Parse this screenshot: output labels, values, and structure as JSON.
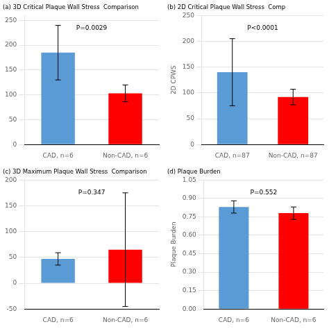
{
  "chart_data": [
    {
      "type": "bar",
      "title": "(a) 3D Critical Plaque Wall Stress  Comparison",
      "annotations": [
        "P=0.0029"
      ],
      "categories": [
        "CAD, n=6",
        "Non-CAD, n=6"
      ],
      "values": [
        185,
        103
      ],
      "errors": [
        55,
        17
      ],
      "colors": [
        "#5B9BD5",
        "#FF0000"
      ],
      "ylim": [
        0,
        260
      ],
      "yticks": [
        0,
        50,
        100,
        150,
        200,
        250
      ],
      "grid": true
    },
    {
      "type": "bar",
      "title": "(b) 2D Critical Plaque Wall Stress  Comp",
      "ylabel": "2D CPWS",
      "annotations": [
        "P<0.0001"
      ],
      "categories": [
        "CAD, n=87",
        "Non-CAD, n=87"
      ],
      "values": [
        140,
        92
      ],
      "errors": [
        65,
        15
      ],
      "colors": [
        "#5B9BD5",
        "#FF0000"
      ],
      "ylim": [
        0,
        250
      ],
      "yticks": [
        0,
        50,
        100,
        150,
        200,
        250
      ],
      "grid": true
    },
    {
      "type": "bar",
      "title": "(c) 3D Maximum Plaque Wall Stress  Comparison",
      "annotations": [
        "P=0.347"
      ],
      "categories": [
        "CAD, n=6",
        "Non-CAD, n=6"
      ],
      "values": [
        47,
        65
      ],
      "errors": [
        12,
        110
      ],
      "colors": [
        "#5B9BD5",
        "#FF0000"
      ],
      "ylim": [
        -50,
        200
      ],
      "yticks": [
        -50,
        0,
        50,
        100,
        150,
        200
      ],
      "grid": true
    },
    {
      "type": "bar",
      "title": "(d) Plaque Burden",
      "ylabel": "Plaque Burden",
      "annotations": [
        "P=0.552"
      ],
      "categories": [
        "CAD, n=6",
        "Non-CAD, n=6"
      ],
      "values": [
        0.83,
        0.78
      ],
      "errors": [
        0.05,
        0.05
      ],
      "colors": [
        "#5B9BD5",
        "#FF0000"
      ],
      "ylim": [
        0,
        1.05
      ],
      "yticks": [
        {
          "value": 0.0,
          "label": "0.00"
        },
        0.15,
        {
          "value": 0.3,
          "label": "0.30"
        },
        0.45,
        {
          "value": 0.6,
          "label": "0.60"
        },
        0.75,
        {
          "value": 0.9,
          "label": "0.90"
        },
        1.05
      ],
      "grid": true
    }
  ]
}
